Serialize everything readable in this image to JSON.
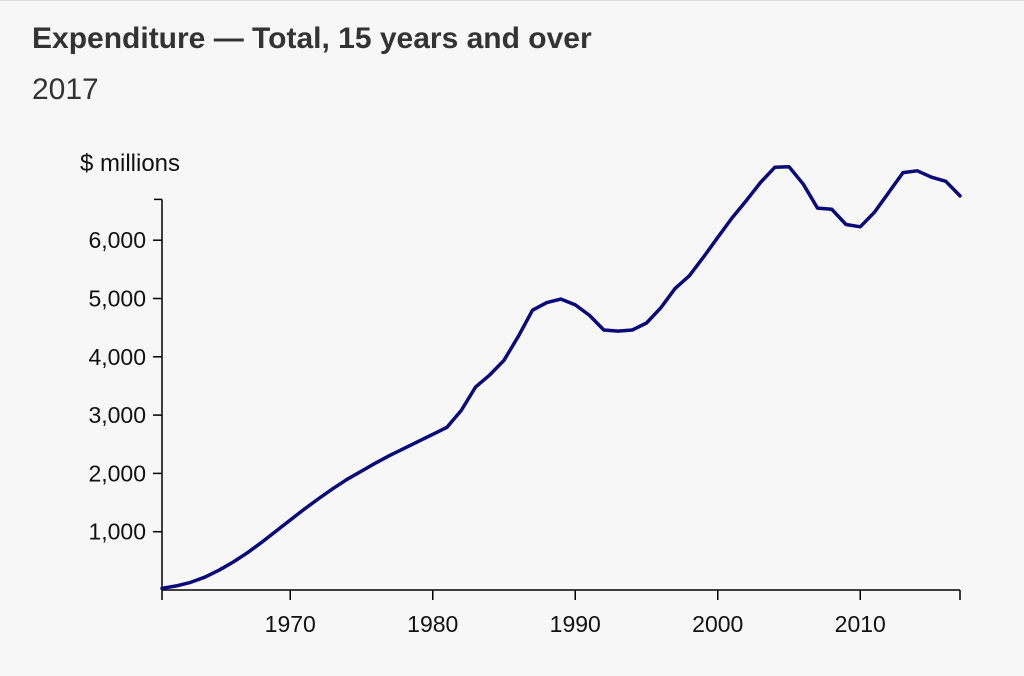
{
  "chart_data": {
    "type": "line",
    "title": "Expenditure — Total, 15 years and over",
    "subtitle": "2017",
    "ylabel": "$ millions",
    "xlabel": "",
    "xlim": [
      1961,
      2017
    ],
    "ylim": [
      0,
      6700
    ],
    "x_ticks": [
      1970,
      1980,
      1990,
      2000,
      2010
    ],
    "x_tick_labels": [
      "1970",
      "1980",
      "1990",
      "2000",
      "2010"
    ],
    "y_ticks": [
      1000,
      2000,
      3000,
      4000,
      5000,
      6000
    ],
    "y_tick_labels": [
      "1,000",
      "2,000",
      "3,000",
      "4,000",
      "5,000",
      "6,000"
    ],
    "grid": false,
    "legend": "none",
    "series": [
      {
        "color": "#0a0a7a",
        "x": [
          1961,
          1962,
          1963,
          1964,
          1965,
          1966,
          1967,
          1968,
          1969,
          1970,
          1971,
          1972,
          1973,
          1974,
          1975,
          1976,
          1977,
          1978,
          1979,
          1980,
          1981,
          1982,
          1983,
          1984,
          1985,
          1986,
          1987,
          1988,
          1989,
          1990,
          1991,
          1992,
          1993,
          1994,
          1995,
          1996,
          1997,
          1998,
          1999,
          2000,
          2001,
          2002,
          2003,
          2004,
          2005,
          2006,
          2007,
          2008,
          2009,
          2010,
          2011,
          2012,
          2013,
          2014,
          2015,
          2016,
          2017
        ],
        "values": [
          30,
          70,
          130,
          220,
          340,
          480,
          640,
          820,
          1010,
          1200,
          1390,
          1570,
          1740,
          1900,
          2040,
          2180,
          2310,
          2430,
          2550,
          2670,
          2790,
          3080,
          3480,
          3690,
          3940,
          4350,
          4800,
          4930,
          4990,
          4890,
          4710,
          4460,
          4440,
          4460,
          4580,
          4840,
          5170,
          5390,
          5710,
          6050,
          6380,
          6680,
          6990,
          7250,
          7260,
          6960,
          6550,
          6530,
          6270,
          6230,
          6480,
          6820,
          7160,
          7190,
          7080,
          7010,
          6760
        ]
      }
    ]
  }
}
